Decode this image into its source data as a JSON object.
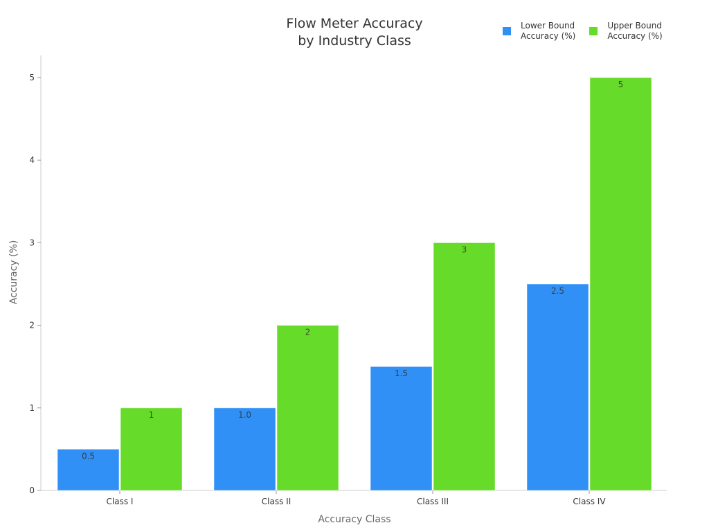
{
  "chart_data": {
    "type": "bar",
    "title": "Flow Meter Accuracy\nby Industry Class",
    "title_lines": [
      "Flow Meter Accuracy",
      "by Industry Class"
    ],
    "xlabel": "Accuracy Class",
    "ylabel": "Accuracy (%)",
    "categories": [
      "Class I",
      "Class II",
      "Class III",
      "Class IV"
    ],
    "series": [
      {
        "name": "Lower Bound Accuracy (%)",
        "color": "#3090F5",
        "values": [
          0.5,
          1.0,
          1.5,
          2.5
        ],
        "labels": [
          "0.5",
          "1.0",
          "1.5",
          "2.5"
        ]
      },
      {
        "name": "Upper Bound Accuracy (%)",
        "color": "#67DB29",
        "values": [
          1,
          2,
          3,
          5
        ],
        "labels": [
          "1",
          "2",
          "3",
          "5"
        ]
      }
    ],
    "ylim": [
      0,
      5.25
    ],
    "yticks": [
      0,
      1,
      2,
      3,
      4,
      5
    ],
    "grid": false,
    "legend_position": "top-right"
  },
  "legend": {
    "items": [
      {
        "label": "Lower Bound\nAccuracy (%)",
        "color": "#3090F5"
      },
      {
        "label": "Upper Bound\nAccuracy (%)",
        "color": "#67DB29"
      }
    ]
  }
}
